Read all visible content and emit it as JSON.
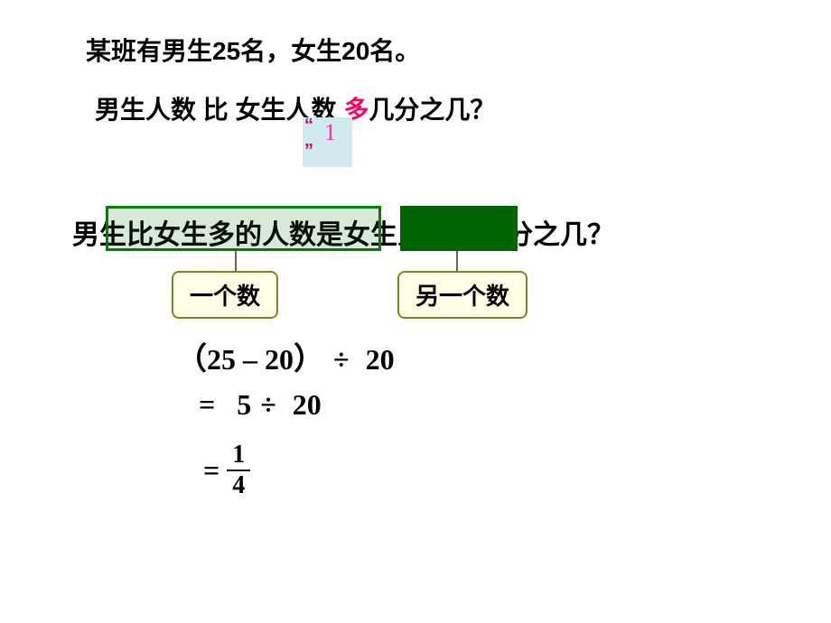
{
  "problem": {
    "statement": "某班有男生25名，女生20名。",
    "question_prefix": "男生人数 比 女生人数 ",
    "question_highlight": "多",
    "question_suffix": "几分之几？"
  },
  "marker": {
    "quote_open": "“",
    "digit": "1",
    "quote_close": "”"
  },
  "rephrase": {
    "text": "男生比女生多的人数是女生人数的几分之几？",
    "box_left_color": "#008000",
    "box_right_color": "#006400"
  },
  "labels": {
    "one_number": "一个数",
    "another_number": "另一个数",
    "label_bg": "#fffde5",
    "label_border": "#6b8e23"
  },
  "equation": {
    "line1": {
      "paren_open": "（",
      "a": "25",
      "minus": "–",
      "b": "20",
      "paren_close": "）",
      "divide": "÷",
      "c": "20"
    },
    "line2": {
      "equals": "=",
      "a": "5",
      "divide": "÷",
      "b": "20"
    },
    "line3": {
      "equals": "=",
      "numerator": "1",
      "denominator": "4"
    }
  },
  "colors": {
    "highlight_pink": "#ff0066",
    "marker_bg": "#d0eaf0",
    "marker_text": "#ff3399",
    "marker_quote": "#cc0066"
  }
}
